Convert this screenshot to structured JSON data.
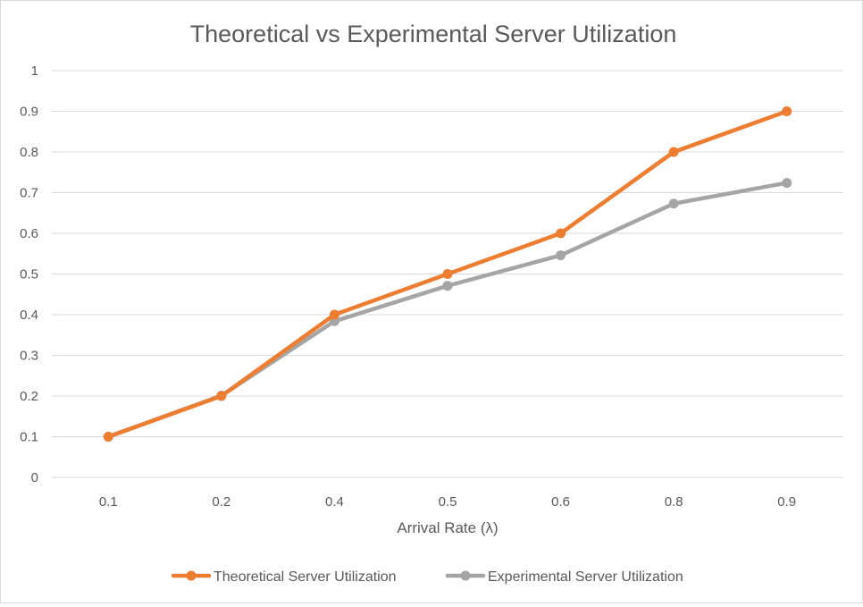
{
  "chart_data": {
    "type": "line",
    "title": "Theoretical vs Experimental Server Utilization",
    "xlabel": "Arrival Rate (λ)",
    "ylabel": "",
    "categories": [
      "0.1",
      "0.2",
      "0.4",
      "0.5",
      "0.6",
      "0.8",
      "0.9"
    ],
    "ylim": [
      0,
      1
    ],
    "yticks": [
      "0",
      "0.1",
      "0.2",
      "0.3",
      "0.4",
      "0.5",
      "0.6",
      "0.7",
      "0.8",
      "0.9",
      "1"
    ],
    "grid": true,
    "legend_position": "bottom",
    "series": [
      {
        "name": "Theoretical Server Utilization",
        "color": "#ED7D31",
        "values": [
          0.1,
          0.2,
          0.4,
          0.5,
          0.6,
          0.8,
          0.9
        ]
      },
      {
        "name": "Experimental Server Utilization",
        "color": "#A5A5A5",
        "values": [
          0.1,
          0.201,
          0.384,
          0.471,
          0.546,
          0.673,
          0.724
        ]
      }
    ]
  }
}
